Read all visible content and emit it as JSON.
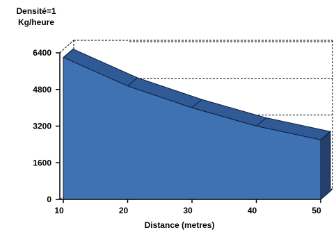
{
  "chart_data": {
    "type": "area",
    "title_lines": [
      "Densité=1",
      "Kg/heure"
    ],
    "xlabel": "Distance (metres)",
    "ylabel": "",
    "x": [
      10,
      20,
      30,
      40,
      50
    ],
    "series": [
      {
        "values": [
          6200,
          4950,
          4000,
          3200,
          2600
        ]
      }
    ],
    "x_ticks": [
      10,
      20,
      30,
      40,
      50
    ],
    "y_ticks": [
      0,
      1600,
      3200,
      4800,
      6400
    ],
    "xlim": [
      10,
      50
    ],
    "ylim": [
      0,
      6400
    ],
    "grid": "dashed lines on back wall at 3200, 4800, 6400",
    "style": "3d",
    "colors": {
      "face": "#3f72b2",
      "top": "#2f5a96",
      "side": "#253f6e",
      "edge": "#0d1f3d"
    }
  }
}
